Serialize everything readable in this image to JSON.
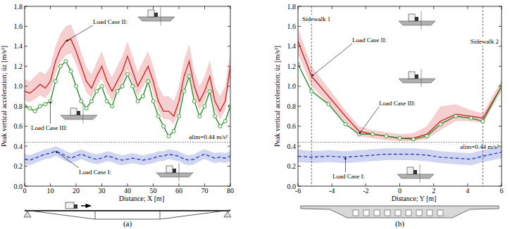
{
  "chart_data": [
    {
      "type": "line",
      "title": "(a)",
      "x_label": "Distance; X [m]",
      "y_label": "Peak vertical acceleration; üz [m/s²]",
      "xlim": [
        0,
        80
      ],
      "xticks": [
        0,
        10,
        20,
        30,
        40,
        50,
        60,
        70,
        80
      ],
      "ylim": [
        0,
        1.8
      ],
      "yticks": [
        {
          "value": 0,
          "label": "0.0"
        },
        0.2,
        0.4,
        0.6,
        0.8,
        {
          "value": 1,
          "label": "1.0"
        },
        1.2,
        1.4,
        1.6,
        1.8
      ],
      "grid": false,
      "hlines": [
        {
          "value": 0.44,
          "label": "alim=0.44 m/s²"
        }
      ],
      "x": [
        0,
        2,
        4,
        6,
        8,
        10,
        12,
        14,
        16,
        18,
        20,
        22,
        24,
        26,
        28,
        30,
        32,
        34,
        36,
        38,
        40,
        42,
        44,
        46,
        48,
        50,
        52,
        54,
        56,
        58,
        60,
        62,
        64,
        66,
        68,
        70,
        72,
        74,
        76,
        78,
        80
      ],
      "series": [
        {
          "name": "Load Case I:",
          "color": "#2a44c4",
          "line_style": "dashed",
          "marker": "none",
          "values": [
            0.27,
            0.26,
            0.28,
            0.3,
            0.32,
            0.33,
            0.35,
            0.33,
            0.3,
            0.28,
            0.3,
            0.32,
            0.3,
            0.28,
            0.27,
            0.28,
            0.3,
            0.29,
            0.27,
            0.26,
            0.27,
            0.28,
            0.27,
            0.26,
            0.27,
            0.28,
            0.3,
            0.3,
            0.32,
            0.31,
            0.3,
            0.27,
            0.26,
            0.27,
            0.3,
            0.32,
            0.3,
            0.28,
            0.29,
            0.28,
            0.3
          ],
          "upper": [
            0.32,
            0.31,
            0.33,
            0.35,
            0.37,
            0.38,
            0.4,
            0.38,
            0.35,
            0.33,
            0.35,
            0.37,
            0.35,
            0.33,
            0.32,
            0.33,
            0.35,
            0.34,
            0.32,
            0.31,
            0.32,
            0.33,
            0.32,
            0.31,
            0.32,
            0.33,
            0.35,
            0.35,
            0.37,
            0.36,
            0.35,
            0.32,
            0.31,
            0.32,
            0.35,
            0.37,
            0.35,
            0.33,
            0.34,
            0.33,
            0.35
          ],
          "lower": [
            0.22,
            0.21,
            0.23,
            0.25,
            0.27,
            0.28,
            0.3,
            0.28,
            0.25,
            0.23,
            0.25,
            0.27,
            0.25,
            0.23,
            0.22,
            0.23,
            0.25,
            0.24,
            0.22,
            0.21,
            0.22,
            0.23,
            0.22,
            0.21,
            0.22,
            0.23,
            0.25,
            0.25,
            0.27,
            0.26,
            0.25,
            0.22,
            0.21,
            0.22,
            0.25,
            0.27,
            0.25,
            0.23,
            0.24,
            0.23,
            0.25
          ]
        },
        {
          "name": "Load Case II:",
          "color": "#d62728",
          "line_style": "solid",
          "marker": "none",
          "values": [
            0.95,
            0.93,
            0.97,
            1.02,
            0.98,
            1.05,
            1.25,
            1.38,
            1.45,
            1.47,
            1.35,
            1.2,
            1.05,
            0.98,
            1.1,
            1.2,
            1.05,
            0.95,
            1.05,
            1.15,
            1.3,
            1.15,
            1.0,
            1.1,
            1.2,
            1.05,
            0.85,
            0.75,
            0.75,
            0.7,
            0.85,
            1.1,
            1.25,
            1.0,
            0.85,
            0.95,
            1.1,
            0.85,
            0.75,
            0.85,
            1.2
          ],
          "upper": [
            1.07,
            1.05,
            1.1,
            1.15,
            1.12,
            1.2,
            1.4,
            1.53,
            1.6,
            1.62,
            1.5,
            1.34,
            1.19,
            1.12,
            1.24,
            1.35,
            1.19,
            1.09,
            1.2,
            1.3,
            1.45,
            1.3,
            1.14,
            1.25,
            1.35,
            1.2,
            1.0,
            0.9,
            0.9,
            0.85,
            1.0,
            1.26,
            1.42,
            1.15,
            1.0,
            1.1,
            1.26,
            1.0,
            0.9,
            1.0,
            1.35
          ],
          "lower": [
            0.86,
            0.84,
            0.87,
            0.91,
            0.88,
            0.94,
            1.12,
            1.24,
            1.31,
            1.33,
            1.22,
            1.08,
            0.94,
            0.88,
            0.99,
            1.08,
            0.94,
            0.85,
            0.94,
            1.03,
            1.17,
            1.03,
            0.9,
            0.99,
            1.08,
            0.94,
            0.76,
            0.67,
            0.67,
            0.62,
            0.76,
            0.99,
            1.12,
            0.9,
            0.76,
            0.85,
            0.99,
            0.76,
            0.67,
            0.76,
            1.08
          ]
        },
        {
          "name": "Load Case III:",
          "color": "#2a8a2a",
          "line_style": "solid",
          "marker": "circle",
          "values": [
            0.8,
            0.78,
            0.75,
            0.8,
            0.82,
            0.85,
            1.05,
            1.2,
            1.25,
            1.15,
            1.0,
            0.85,
            0.78,
            0.85,
            0.95,
            1.0,
            0.85,
            0.8,
            0.95,
            1.0,
            1.12,
            1.0,
            0.85,
            0.9,
            1.05,
            0.85,
            0.7,
            0.6,
            0.5,
            0.55,
            0.7,
            0.95,
            1.1,
            0.85,
            0.7,
            0.8,
            0.95,
            0.7,
            0.6,
            0.65,
            0.8
          ]
        }
      ]
    },
    {
      "type": "line",
      "title": "(b)",
      "x_label": "Distance; Y [m]",
      "y_label": "Peak vertical acceleration; üz [m/s²]",
      "xlim": [
        -6,
        6
      ],
      "xticks": [
        -6,
        -4,
        -2,
        0,
        2,
        4,
        6
      ],
      "ylim": [
        0,
        1.8
      ],
      "yticks": [
        {
          "value": 0,
          "label": "0.0"
        },
        0.2,
        0.4,
        0.6,
        0.8,
        {
          "value": 1,
          "label": "1.0"
        },
        1.2,
        1.4,
        1.6,
        1.8
      ],
      "grid": false,
      "hlines": [
        {
          "value": 0.44,
          "label": "alim=0.44 m/s²"
        }
      ],
      "vlines": [
        {
          "value": -5.2,
          "label": "Sidewalk 1"
        },
        {
          "value": 4.9,
          "label": "Sidewalk 2"
        }
      ],
      "x": [
        -6,
        -5.2,
        -4.2,
        -3.2,
        -2.4,
        -1.6,
        -0.8,
        0,
        0.8,
        1.6,
        2.4,
        3.3,
        4.2,
        4.9,
        6
      ],
      "series": [
        {
          "name": "Load Case I:",
          "color": "#2a44c4",
          "line_style": "dashed",
          "marker": "none",
          "values": [
            0.3,
            0.29,
            0.3,
            0.29,
            0.3,
            0.31,
            0.32,
            0.32,
            0.32,
            0.31,
            0.29,
            0.28,
            0.27,
            0.3,
            0.34
          ],
          "upper": [
            0.37,
            0.35,
            0.36,
            0.35,
            0.36,
            0.37,
            0.38,
            0.38,
            0.38,
            0.37,
            0.35,
            0.34,
            0.33,
            0.36,
            0.4
          ],
          "lower": [
            0.24,
            0.23,
            0.24,
            0.23,
            0.24,
            0.25,
            0.26,
            0.26,
            0.26,
            0.25,
            0.23,
            0.22,
            0.21,
            0.24,
            0.28
          ]
        },
        {
          "name": "Load Case II:",
          "color": "#d62728",
          "line_style": "solid",
          "marker": "none",
          "values": [
            1.45,
            1.1,
            0.9,
            0.7,
            0.55,
            0.52,
            0.5,
            0.48,
            0.48,
            0.52,
            0.65,
            0.72,
            0.7,
            0.68,
            1.0
          ],
          "upper": [
            1.58,
            1.2,
            0.98,
            0.76,
            0.6,
            0.56,
            0.54,
            0.52,
            0.53,
            0.6,
            0.8,
            0.82,
            0.76,
            0.73,
            1.06
          ],
          "lower": [
            1.32,
            1.0,
            0.82,
            0.64,
            0.5,
            0.48,
            0.46,
            0.45,
            0.45,
            0.47,
            0.56,
            0.65,
            0.65,
            0.63,
            0.95
          ]
        },
        {
          "name": "Load Case III:",
          "color": "#2a8a2a",
          "line_style": "solid",
          "marker": "circle",
          "values": [
            1.22,
            0.95,
            0.82,
            0.62,
            0.52,
            0.52,
            0.5,
            0.48,
            0.47,
            0.5,
            0.62,
            0.7,
            0.68,
            0.65,
            1.0
          ]
        }
      ]
    }
  ]
}
